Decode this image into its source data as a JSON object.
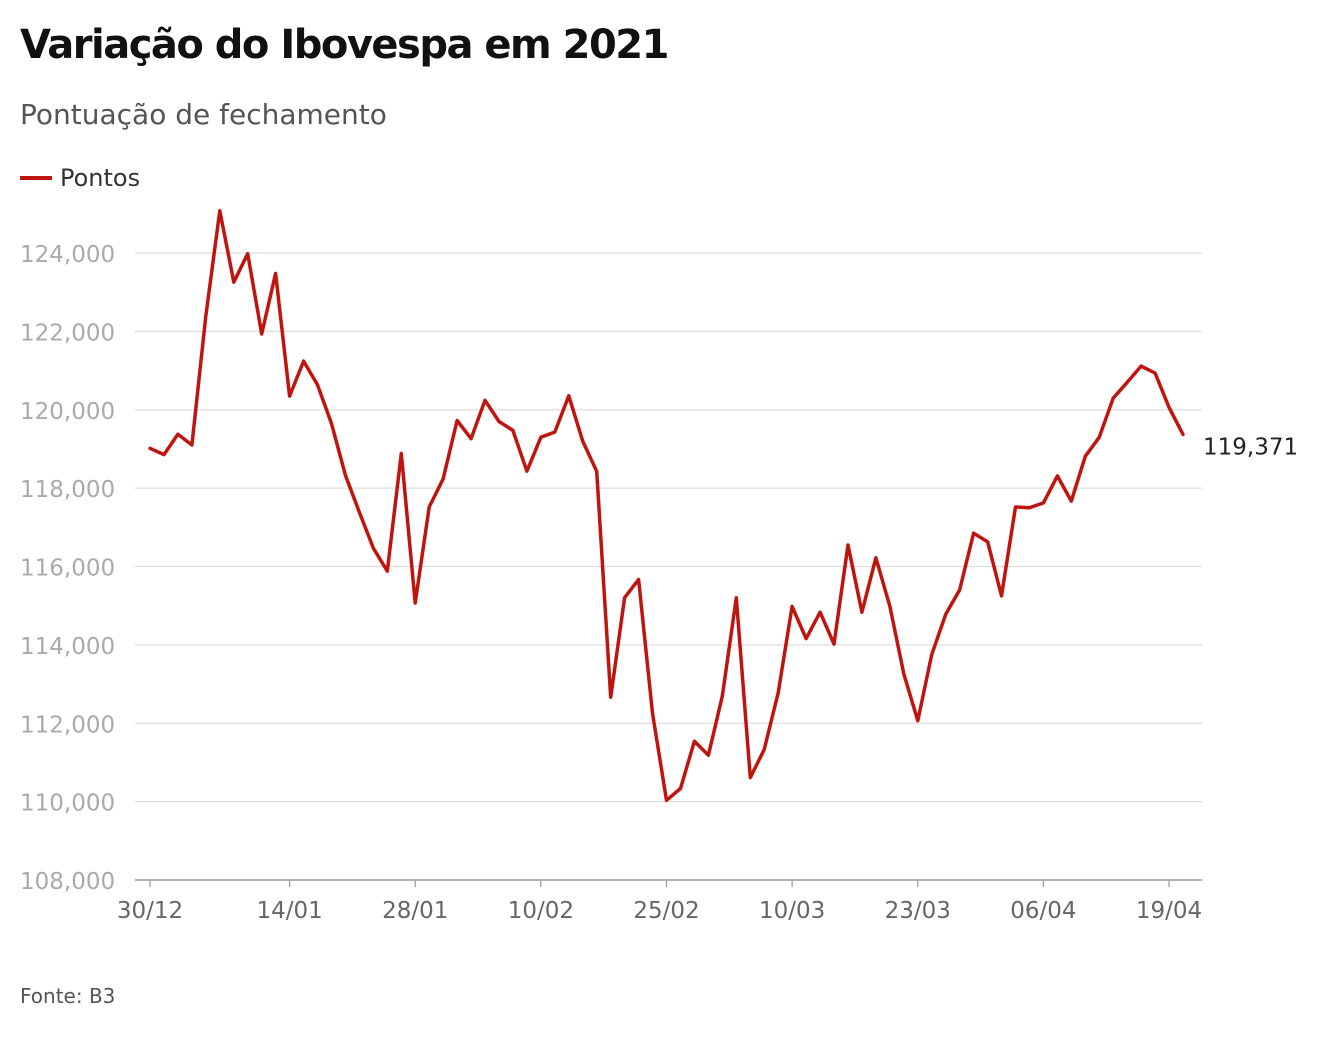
{
  "title": "Variação do Ibovespa em 2021",
  "subtitle": "Pontuação de fechamento",
  "source": "Fonte: B3",
  "colors": {
    "line": "#c0150f",
    "grid": "#dddddd",
    "tick_text": "#aaaaaa",
    "x_tick_text": "#666666"
  },
  "chart_data": {
    "type": "line",
    "title": "Variação do Ibovespa em 2021",
    "subtitle": "Pontuação de fechamento",
    "xlabel": "",
    "ylabel": "",
    "ylim": [
      108000,
      124000
    ],
    "y_ticks": [
      108000,
      110000,
      112000,
      114000,
      116000,
      118000,
      120000,
      122000,
      124000
    ],
    "y_tick_labels": [
      "108,000",
      "110,000",
      "112,000",
      "114,000",
      "116,000",
      "118,000",
      "120,000",
      "122,000",
      "124,000"
    ],
    "x_tick_labels": [
      "30/12",
      "14/01",
      "28/01",
      "10/02",
      "25/02",
      "10/03",
      "23/03",
      "06/04",
      "19/04"
    ],
    "x_tick_index": [
      0,
      10,
      19,
      28,
      37,
      46,
      55,
      64,
      73
    ],
    "grid": true,
    "legend": "top-left",
    "end_label": "119,371",
    "series": [
      {
        "name": "Pontos",
        "values": [
          119017,
          118855,
          119376,
          119101,
          122386,
          125077,
          123255,
          123981,
          121933,
          123480,
          120348,
          121242,
          120636,
          119646,
          118329,
          117381,
          116464,
          115883,
          118883,
          115068,
          117518,
          118234,
          119725,
          119261,
          120240,
          119699,
          119472,
          118431,
          119300,
          119429,
          120356,
          119199,
          118430,
          112668,
          115203,
          115668,
          112256,
          110035,
          110335,
          111540,
          111184,
          112690,
          115202,
          110612,
          111331,
          112776,
          114983,
          114160,
          114835,
          114019,
          116549,
          114835,
          116222,
          114979,
          113260,
          112064,
          113750,
          114781,
          115400,
          116849,
          116633,
          115253,
          117519,
          117499,
          117624,
          118313,
          117670,
          118812,
          119297,
          120294,
          120700,
          121114,
          120934,
          120062,
          119371
        ]
      }
    ]
  }
}
